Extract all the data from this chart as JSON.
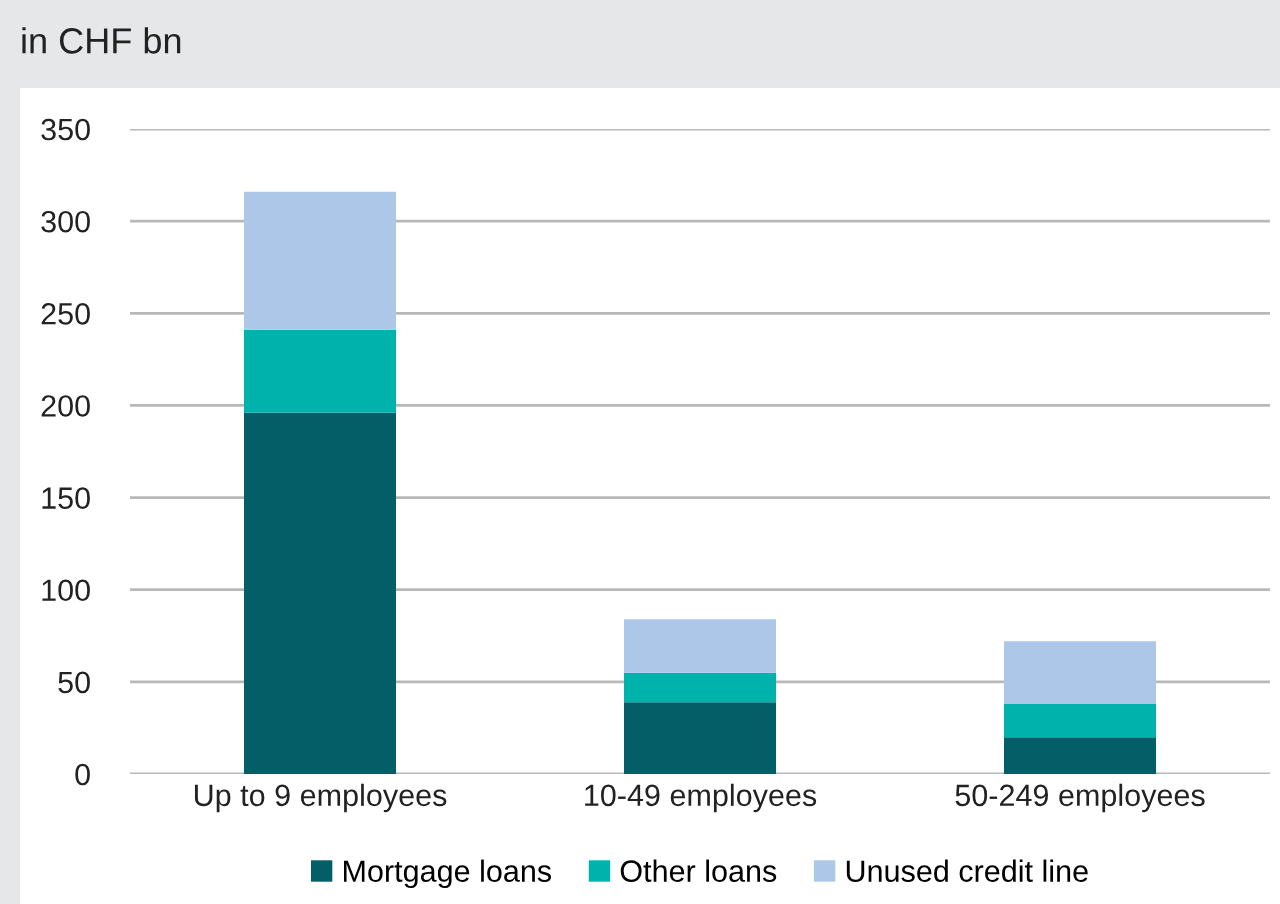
{
  "chart_data": {
    "type": "bar",
    "title": "in CHF bn",
    "stacked": true,
    "categories": [
      "Up to 9 employees",
      "10-49 employees",
      "50-249 employees"
    ],
    "series": [
      {
        "name": "Mortgage loans",
        "color": "#035e67",
        "values": [
          196,
          39,
          20
        ]
      },
      {
        "name": "Other loans",
        "color": "#00b2ac",
        "values": [
          45,
          16,
          18
        ]
      },
      {
        "name": "Unused credit line",
        "color": "#adc7e8",
        "values": [
          75,
          29,
          34
        ]
      }
    ],
    "ylim": [
      0,
      350
    ],
    "yticks": [
      0,
      50,
      100,
      150,
      200,
      250,
      300,
      350
    ],
    "grid": "y",
    "legend": "bottom"
  }
}
